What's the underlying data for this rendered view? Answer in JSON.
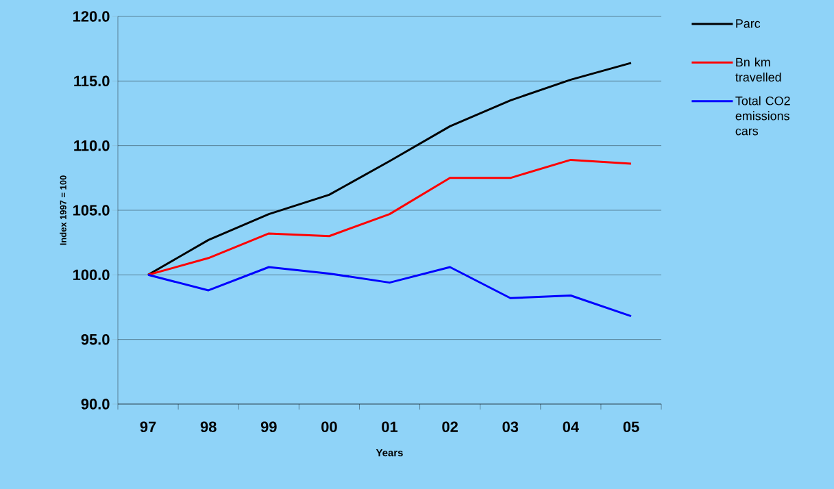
{
  "chart_data": {
    "type": "line",
    "xlabel": "Years",
    "ylabel": "Index 1997 = 100",
    "categories": [
      "97",
      "98",
      "99",
      "00",
      "01",
      "02",
      "03",
      "04",
      "05"
    ],
    "series": [
      {
        "name": "Parc",
        "color": "#000000",
        "values": [
          100.0,
          102.7,
          104.7,
          106.2,
          108.8,
          111.5,
          113.5,
          115.1,
          116.4
        ]
      },
      {
        "name": "Bn km travelled",
        "color": "#ff0000",
        "values": [
          100.0,
          101.3,
          103.2,
          103.0,
          104.7,
          107.5,
          107.5,
          108.9,
          108.6
        ]
      },
      {
        "name": "Total CO2 emissions cars",
        "color": "#0000ff",
        "values": [
          100.0,
          98.8,
          100.6,
          100.1,
          99.4,
          100.6,
          98.2,
          98.4,
          96.8
        ]
      }
    ],
    "ylim": [
      90,
      120
    ],
    "yticks": [
      {
        "value": 90,
        "label": "90.0"
      },
      {
        "value": 95,
        "label": "95.0"
      },
      {
        "value": 100,
        "label": "100.0"
      },
      {
        "value": 105,
        "label": "105.0"
      },
      {
        "value": 110,
        "label": "110.0"
      },
      {
        "value": 115,
        "label": "115.0"
      },
      {
        "value": 120,
        "label": "120.0"
      }
    ],
    "grid": "y",
    "legend": "right",
    "marker": "none",
    "line_style": "solid"
  }
}
